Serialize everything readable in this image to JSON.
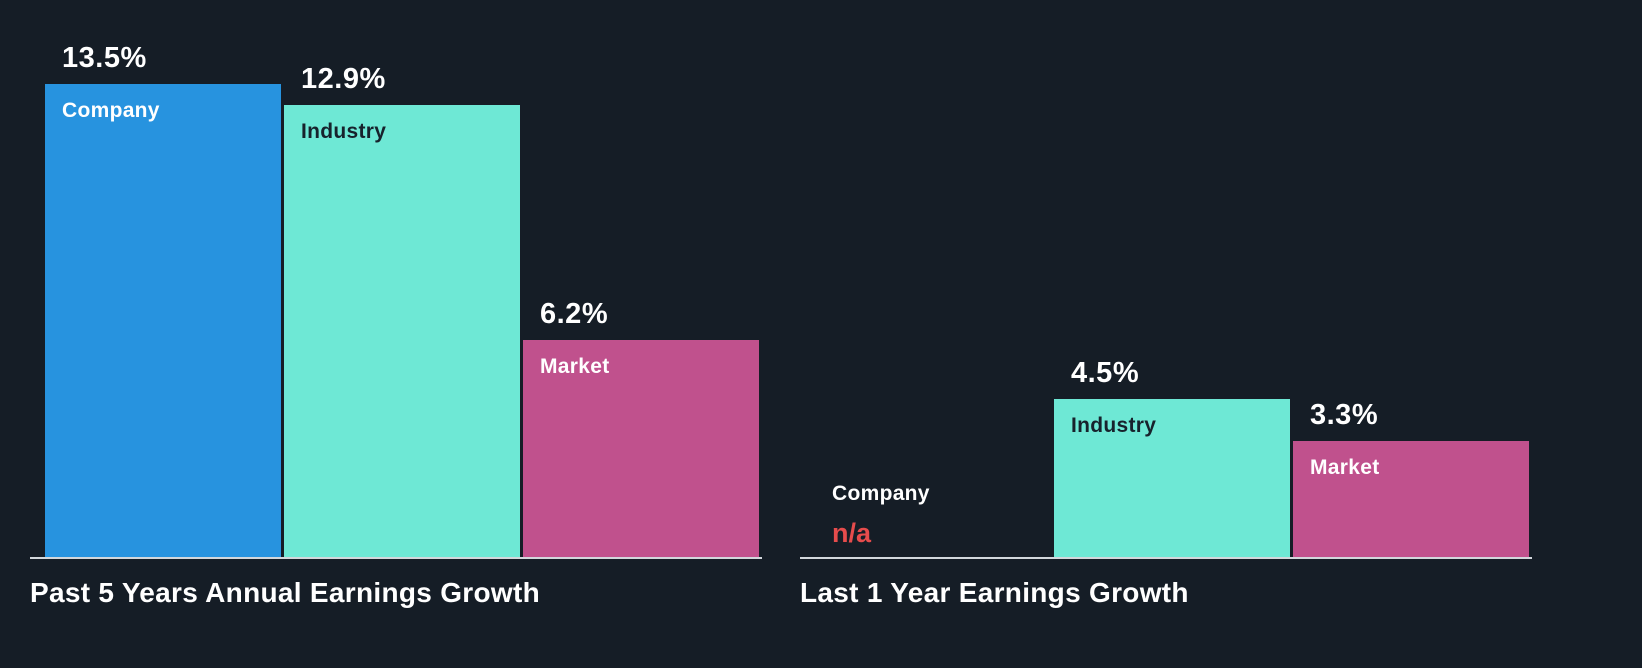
{
  "colors": {
    "background": "#151d26",
    "company": "#2793df",
    "industry": "#6ee8d5",
    "market": "#c0518d",
    "na": "#e64c4c",
    "axis": "#d2d7dc",
    "text": "#ffffff"
  },
  "chart_data": [
    {
      "type": "bar",
      "title": "Past 5 Years Annual Earnings Growth",
      "categories": [
        "Company",
        "Industry",
        "Market"
      ],
      "values": [
        13.5,
        12.9,
        6.2
      ],
      "value_labels": [
        "13.5%",
        "12.9%",
        "6.2%"
      ],
      "xlabel": "",
      "ylabel": "",
      "ylim": [
        0,
        13.5
      ],
      "grid": false,
      "legend": "none"
    },
    {
      "type": "bar",
      "title": "Last 1 Year Earnings Growth",
      "categories": [
        "Company",
        "Industry",
        "Market"
      ],
      "values": [
        null,
        4.5,
        3.3
      ],
      "value_labels": [
        "n/a",
        "4.5%",
        "3.3%"
      ],
      "xlabel": "",
      "ylabel": "",
      "ylim": [
        0,
        13.5
      ],
      "grid": false,
      "legend": "none"
    }
  ]
}
